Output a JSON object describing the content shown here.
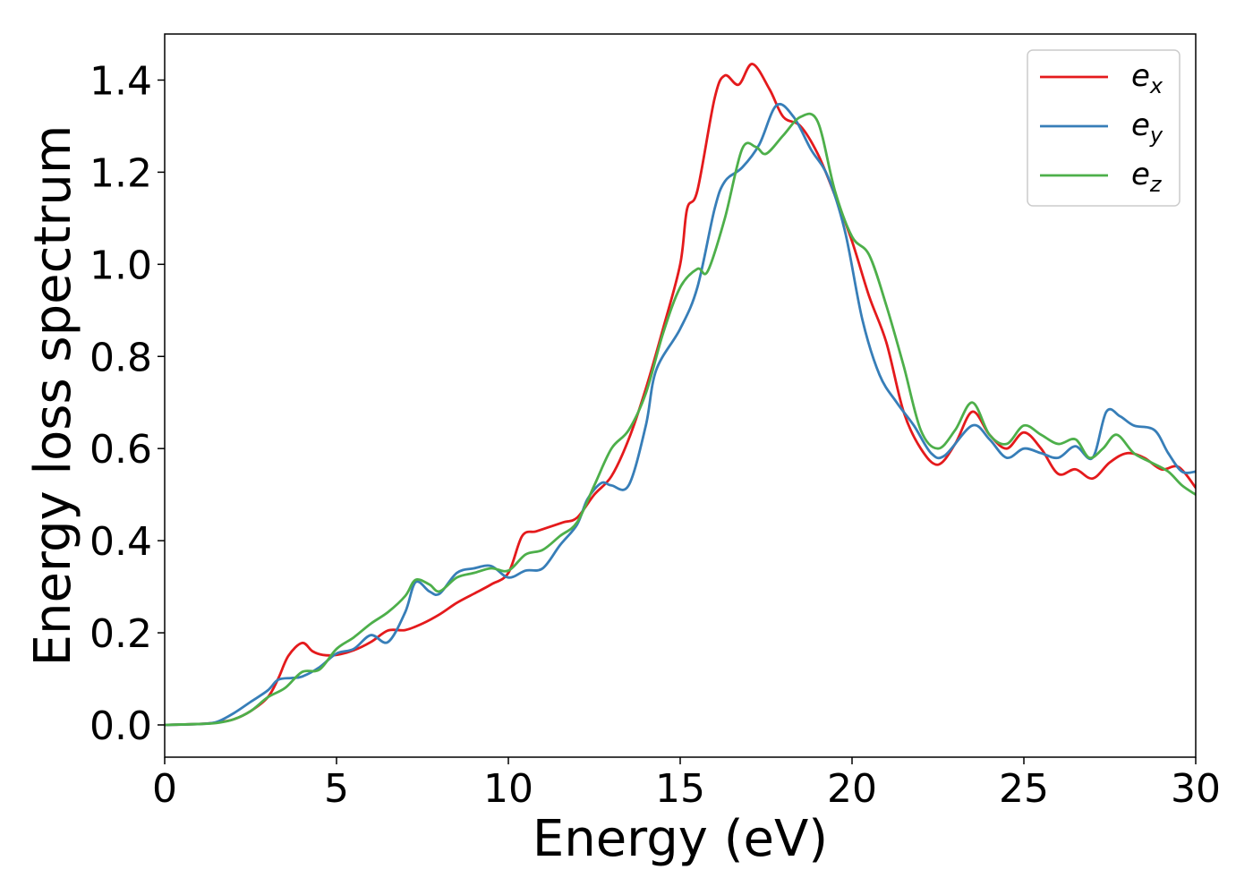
{
  "chart_data": {
    "type": "line",
    "title": "",
    "xlabel": "Energy (eV)",
    "ylabel": "Energy loss spectrum",
    "xlim": [
      0,
      30
    ],
    "ylim": [
      -0.07,
      1.5
    ],
    "xticks": [
      0,
      5,
      10,
      15,
      20,
      25,
      30
    ],
    "yticks": [
      0.0,
      0.2,
      0.4,
      0.6,
      0.8,
      1.0,
      1.2,
      1.4
    ],
    "xtick_labels": [
      "0",
      "5",
      "10",
      "15",
      "20",
      "25",
      "30"
    ],
    "ytick_labels": [
      "0.0",
      "0.2",
      "0.4",
      "0.6",
      "0.8",
      "1.0",
      "1.2",
      "1.4"
    ],
    "grid": false,
    "legend": {
      "position": "top-right"
    },
    "series": [
      {
        "name": "e_x",
        "label_base": "e",
        "label_sub": "x",
        "color": "#e41a1c",
        "points": [
          [
            0,
            0
          ],
          [
            1,
            0.002
          ],
          [
            1.5,
            0.005
          ],
          [
            2,
            0.012
          ],
          [
            2.5,
            0.03
          ],
          [
            3,
            0.06
          ],
          [
            3.3,
            0.1
          ],
          [
            3.6,
            0.15
          ],
          [
            4,
            0.178
          ],
          [
            4.3,
            0.16
          ],
          [
            4.6,
            0.152
          ],
          [
            5,
            0.152
          ],
          [
            5.5,
            0.162
          ],
          [
            6,
            0.18
          ],
          [
            6.5,
            0.205
          ],
          [
            7,
            0.206
          ],
          [
            7.5,
            0.22
          ],
          [
            8,
            0.24
          ],
          [
            8.5,
            0.265
          ],
          [
            9,
            0.285
          ],
          [
            9.5,
            0.305
          ],
          [
            10,
            0.33
          ],
          [
            10.4,
            0.41
          ],
          [
            10.8,
            0.42
          ],
          [
            11.2,
            0.43
          ],
          [
            11.6,
            0.44
          ],
          [
            12,
            0.45
          ],
          [
            12.5,
            0.5
          ],
          [
            13,
            0.54
          ],
          [
            13.5,
            0.62
          ],
          [
            14,
            0.73
          ],
          [
            14.5,
            0.86
          ],
          [
            15,
            1.0
          ],
          [
            15.2,
            1.12
          ],
          [
            15.5,
            1.16
          ],
          [
            16,
            1.36
          ],
          [
            16.3,
            1.41
          ],
          [
            16.7,
            1.39
          ],
          [
            17.1,
            1.435
          ],
          [
            17.6,
            1.38
          ],
          [
            18,
            1.32
          ],
          [
            18.5,
            1.3
          ],
          [
            19,
            1.24
          ],
          [
            19.5,
            1.15
          ],
          [
            20,
            1.05
          ],
          [
            20.5,
            0.93
          ],
          [
            21,
            0.83
          ],
          [
            21.5,
            0.68
          ],
          [
            22,
            0.6
          ],
          [
            22.5,
            0.565
          ],
          [
            23,
            0.61
          ],
          [
            23.5,
            0.68
          ],
          [
            24,
            0.63
          ],
          [
            24.5,
            0.6
          ],
          [
            25,
            0.635
          ],
          [
            25.5,
            0.6
          ],
          [
            26,
            0.545
          ],
          [
            26.5,
            0.555
          ],
          [
            27,
            0.535
          ],
          [
            27.5,
            0.57
          ],
          [
            28,
            0.59
          ],
          [
            28.5,
            0.58
          ],
          [
            29,
            0.555
          ],
          [
            29.5,
            0.56
          ],
          [
            30,
            0.515
          ]
        ]
      },
      {
        "name": "e_y",
        "label_base": "e",
        "label_sub": "y",
        "color": "#377eb8",
        "points": [
          [
            0,
            0
          ],
          [
            1,
            0.002
          ],
          [
            1.5,
            0.006
          ],
          [
            2,
            0.025
          ],
          [
            2.5,
            0.05
          ],
          [
            3,
            0.075
          ],
          [
            3.3,
            0.098
          ],
          [
            3.7,
            0.102
          ],
          [
            4,
            0.105
          ],
          [
            4.5,
            0.125
          ],
          [
            5,
            0.155
          ],
          [
            5.5,
            0.165
          ],
          [
            6,
            0.195
          ],
          [
            6.5,
            0.18
          ],
          [
            7,
            0.245
          ],
          [
            7.3,
            0.31
          ],
          [
            7.7,
            0.29
          ],
          [
            8,
            0.285
          ],
          [
            8.5,
            0.33
          ],
          [
            9,
            0.34
          ],
          [
            9.5,
            0.345
          ],
          [
            10,
            0.32
          ],
          [
            10.5,
            0.335
          ],
          [
            11,
            0.34
          ],
          [
            11.5,
            0.39
          ],
          [
            12,
            0.435
          ],
          [
            12.3,
            0.49
          ],
          [
            12.7,
            0.525
          ],
          [
            13,
            0.52
          ],
          [
            13.5,
            0.52
          ],
          [
            14,
            0.65
          ],
          [
            14.3,
            0.77
          ],
          [
            15,
            0.86
          ],
          [
            15.5,
            0.95
          ],
          [
            16,
            1.12
          ],
          [
            16.3,
            1.18
          ],
          [
            16.8,
            1.21
          ],
          [
            17.3,
            1.26
          ],
          [
            17.8,
            1.345
          ],
          [
            18.3,
            1.32
          ],
          [
            18.8,
            1.25
          ],
          [
            19.3,
            1.19
          ],
          [
            19.8,
            1.07
          ],
          [
            20.3,
            0.88
          ],
          [
            20.8,
            0.76
          ],
          [
            21.3,
            0.7
          ],
          [
            21.8,
            0.65
          ],
          [
            22.3,
            0.59
          ],
          [
            22.7,
            0.585
          ],
          [
            23.5,
            0.65
          ],
          [
            24,
            0.62
          ],
          [
            24.5,
            0.58
          ],
          [
            25,
            0.6
          ],
          [
            25.5,
            0.59
          ],
          [
            26,
            0.58
          ],
          [
            26.5,
            0.605
          ],
          [
            27,
            0.58
          ],
          [
            27.4,
            0.68
          ],
          [
            27.8,
            0.67
          ],
          [
            28.2,
            0.65
          ],
          [
            28.8,
            0.64
          ],
          [
            29.2,
            0.59
          ],
          [
            29.6,
            0.55
          ],
          [
            30,
            0.55
          ]
        ]
      },
      {
        "name": "e_z",
        "label_base": "e",
        "label_sub": "z",
        "color": "#4daf4a",
        "points": [
          [
            0,
            0
          ],
          [
            1,
            0.002
          ],
          [
            1.5,
            0.004
          ],
          [
            2,
            0.012
          ],
          [
            2.5,
            0.03
          ],
          [
            3,
            0.06
          ],
          [
            3.5,
            0.08
          ],
          [
            4,
            0.115
          ],
          [
            4.5,
            0.12
          ],
          [
            5,
            0.165
          ],
          [
            5.5,
            0.19
          ],
          [
            6,
            0.22
          ],
          [
            6.5,
            0.245
          ],
          [
            7,
            0.28
          ],
          [
            7.3,
            0.315
          ],
          [
            7.7,
            0.305
          ],
          [
            8,
            0.29
          ],
          [
            8.5,
            0.32
          ],
          [
            9,
            0.33
          ],
          [
            9.5,
            0.34
          ],
          [
            10,
            0.335
          ],
          [
            10.5,
            0.37
          ],
          [
            11,
            0.38
          ],
          [
            11.5,
            0.41
          ],
          [
            12,
            0.44
          ],
          [
            12.5,
            0.52
          ],
          [
            13,
            0.6
          ],
          [
            13.5,
            0.64
          ],
          [
            14,
            0.72
          ],
          [
            14.5,
            0.85
          ],
          [
            15,
            0.95
          ],
          [
            15.5,
            0.99
          ],
          [
            15.8,
            0.985
          ],
          [
            16.3,
            1.1
          ],
          [
            16.8,
            1.25
          ],
          [
            17.2,
            1.255
          ],
          [
            17.5,
            1.24
          ],
          [
            18,
            1.28
          ],
          [
            18.5,
            1.32
          ],
          [
            19,
            1.31
          ],
          [
            19.5,
            1.16
          ],
          [
            20,
            1.06
          ],
          [
            20.5,
            1.02
          ],
          [
            21,
            0.91
          ],
          [
            21.5,
            0.78
          ],
          [
            22,
            0.64
          ],
          [
            22.5,
            0.6
          ],
          [
            23,
            0.64
          ],
          [
            23.5,
            0.7
          ],
          [
            24,
            0.63
          ],
          [
            24.5,
            0.61
          ],
          [
            25,
            0.65
          ],
          [
            25.5,
            0.63
          ],
          [
            26,
            0.61
          ],
          [
            26.5,
            0.62
          ],
          [
            26.9,
            0.58
          ],
          [
            27.3,
            0.6
          ],
          [
            27.7,
            0.63
          ],
          [
            28.2,
            0.59
          ],
          [
            28.7,
            0.57
          ],
          [
            29.2,
            0.55
          ],
          [
            29.6,
            0.52
          ],
          [
            30,
            0.5
          ]
        ]
      }
    ]
  }
}
